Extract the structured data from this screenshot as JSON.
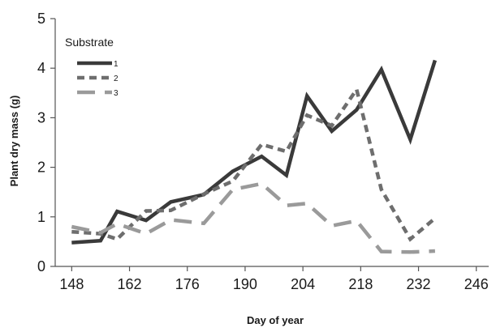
{
  "chart_data": {
    "type": "line",
    "xlabel": "Day of year",
    "ylabel": "Plant dry mass (g)",
    "x_ticks": [
      148,
      162,
      176,
      190,
      204,
      218,
      232,
      246
    ],
    "y_ticks": [
      0,
      1,
      2,
      3,
      4,
      5
    ],
    "xlim": [
      144,
      249
    ],
    "ylim": [
      0,
      5
    ],
    "grid": false,
    "legend": {
      "title": "Substrate",
      "placement": "top-left"
    },
    "series": [
      {
        "name": "1",
        "style": "solid",
        "color": "#3a3a3a",
        "points": [
          [
            148,
            0.48
          ],
          [
            155,
            0.52
          ],
          [
            159,
            1.11
          ],
          [
            166,
            0.93
          ],
          [
            172,
            1.3
          ],
          [
            180,
            1.45
          ],
          [
            187,
            1.92
          ],
          [
            194,
            2.22
          ],
          [
            200,
            1.84
          ],
          [
            205,
            3.44
          ],
          [
            211,
            2.73
          ],
          [
            217,
            3.16
          ],
          [
            223,
            3.97
          ],
          [
            230,
            2.56
          ],
          [
            236,
            4.16
          ]
        ]
      },
      {
        "name": "2",
        "style": "dotted",
        "color": "#6e6e6e",
        "points": [
          [
            148,
            0.7
          ],
          [
            155,
            0.66
          ],
          [
            159,
            0.55
          ],
          [
            166,
            1.12
          ],
          [
            172,
            1.13
          ],
          [
            180,
            1.46
          ],
          [
            187,
            1.72
          ],
          [
            194,
            2.46
          ],
          [
            200,
            2.32
          ],
          [
            205,
            3.05
          ],
          [
            211,
            2.84
          ],
          [
            217,
            3.57
          ],
          [
            223,
            1.55
          ],
          [
            230,
            0.55
          ],
          [
            236,
            0.97
          ]
        ]
      },
      {
        "name": "3",
        "style": "dashed",
        "color": "#9a9a9a",
        "points": [
          [
            148,
            0.8
          ],
          [
            155,
            0.68
          ],
          [
            159,
            0.86
          ],
          [
            166,
            0.66
          ],
          [
            172,
            0.94
          ],
          [
            180,
            0.87
          ],
          [
            187,
            1.55
          ],
          [
            194,
            1.67
          ],
          [
            200,
            1.23
          ],
          [
            205,
            1.27
          ],
          [
            211,
            0.82
          ],
          [
            217,
            0.92
          ],
          [
            223,
            0.3
          ],
          [
            230,
            0.29
          ],
          [
            236,
            0.31
          ]
        ]
      }
    ]
  }
}
